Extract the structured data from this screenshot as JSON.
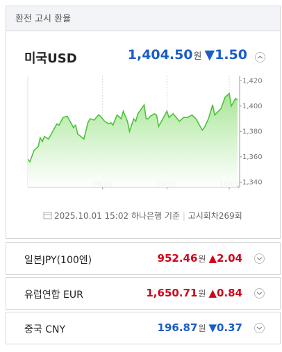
{
  "header": {
    "title": "환전 고시 환율"
  },
  "main": {
    "currency": "미국USD",
    "rate": "1,404.50",
    "unit": "원",
    "change": "▼1.50",
    "direction": "down"
  },
  "chart": {
    "type": "line",
    "color": "#4cc23a",
    "x": [
      -5,
      -4,
      -2,
      0,
      1,
      2,
      3,
      5,
      7,
      9,
      10,
      12,
      14,
      17,
      18,
      19,
      22,
      24,
      25,
      27,
      29,
      30,
      32,
      34,
      35,
      36,
      38,
      40,
      41,
      43,
      44,
      46,
      47,
      48,
      51,
      52,
      53,
      54,
      56,
      57,
      58,
      60,
      62,
      63,
      65,
      67,
      68,
      70,
      72,
      74,
      76,
      79,
      80,
      82,
      84,
      85,
      88,
      90,
      92,
      93,
      95,
      96
    ],
    "values": [
      1358,
      1356,
      1365,
      1368,
      1375,
      1372,
      1376,
      1374,
      1380,
      1386,
      1385,
      1391,
      1392,
      1383,
      1385,
      1378,
      1374,
      1387,
      1390,
      1389,
      1393,
      1392,
      1388,
      1386,
      1387,
      1385,
      1393,
      1390,
      1396,
      1388,
      1380,
      1390,
      1388,
      1394,
      1401,
      1390,
      1390,
      1392,
      1394,
      1393,
      1384,
      1390,
      1396,
      1391,
      1394,
      1390,
      1388,
      1391,
      1391,
      1393,
      1390,
      1381,
      1383,
      1390,
      1401,
      1393,
      1398,
      1407,
      1410,
      1400,
      1406,
      1405
    ],
    "xlim": [
      -5,
      97
    ],
    "xticks": [
      {
        "value": 31,
        "label": "08/01"
      },
      {
        "value": 62,
        "label": "09/01"
      },
      {
        "value": 92,
        "label": "10/01"
      }
    ],
    "ylim": [
      1336,
      1424
    ],
    "yticks": [
      {
        "value": 1340,
        "label": "1,340"
      },
      {
        "value": 1360,
        "label": "1,360"
      },
      {
        "value": 1380,
        "label": "1,380"
      },
      {
        "value": 1400,
        "label": "1,400"
      },
      {
        "value": 1420,
        "label": "1,420"
      }
    ]
  },
  "footer": {
    "date": "2025.10.01 15:02",
    "source": "하나은행 기준",
    "round": "고시회차269회"
  },
  "rows": [
    {
      "name": "일본JPY(100엔)",
      "rate": "952.46",
      "unit": "원",
      "change": "▲2.04",
      "direction": "up"
    },
    {
      "name": "유럽연합 EUR",
      "rate": "1,650.71",
      "unit": "원",
      "change": "▲0.84",
      "direction": "up"
    },
    {
      "name": "중국 CNY",
      "rate": "196.87",
      "unit": "원",
      "change": "▼0.37",
      "direction": "down"
    }
  ]
}
